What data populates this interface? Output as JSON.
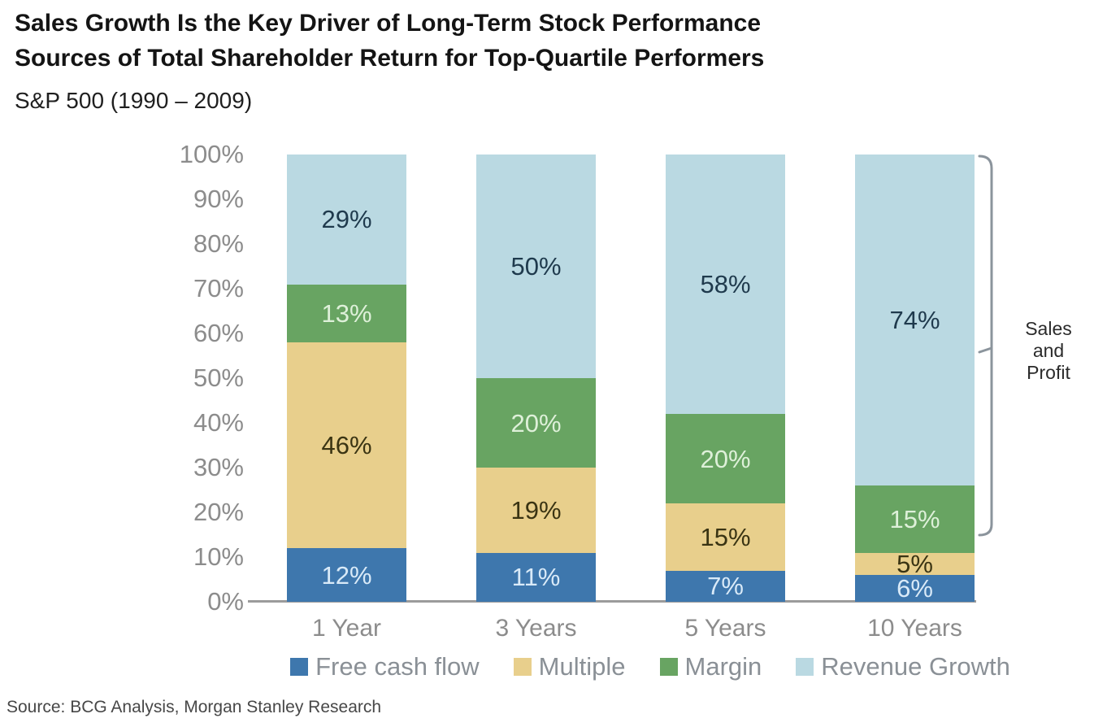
{
  "chart_data": {
    "type": "bar",
    "stacked": true,
    "title_line1": "Sales Growth Is the Key Driver of Long-Term Stock Performance",
    "title_line2": "Sources of Total Shareholder Return for Top-Quartile Performers",
    "subtitle": "S&P 500 (1990 – 2009)",
    "categories": [
      "1 Year",
      "3 Years",
      "5 Years",
      "10 Years"
    ],
    "series": [
      {
        "name": "Free cash flow",
        "color": "#3e77ad",
        "label_color": "#d9eaf8",
        "values": [
          12,
          11,
          7,
          6
        ]
      },
      {
        "name": "Multiple",
        "color": "#e8cf8c",
        "label_color": "#3a3413",
        "values": [
          46,
          19,
          15,
          5
        ]
      },
      {
        "name": "Margin",
        "color": "#68a462",
        "label_color": "#def0d9",
        "values": [
          13,
          20,
          20,
          15
        ]
      },
      {
        "name": "Revenue Growth",
        "color": "#bad9e2",
        "label_color": "#1f3a4d",
        "values": [
          29,
          50,
          58,
          74
        ]
      }
    ],
    "value_suffix": "%",
    "y_axis": {
      "ticks": [
        "0%",
        "10%",
        "20%",
        "30%",
        "40%",
        "50%",
        "60%",
        "70%",
        "80%",
        "90%",
        "100%"
      ],
      "range": [
        0,
        100
      ],
      "gridlines": false
    },
    "legend_position": "bottom",
    "annotation": {
      "text": "Sales\nand\nProfit",
      "applies_to": "Margin + Revenue Growth segments of the 10 Years bar (11% to 100%)"
    }
  },
  "source": "Source: BCG Analysis, Morgan Stanley Research"
}
